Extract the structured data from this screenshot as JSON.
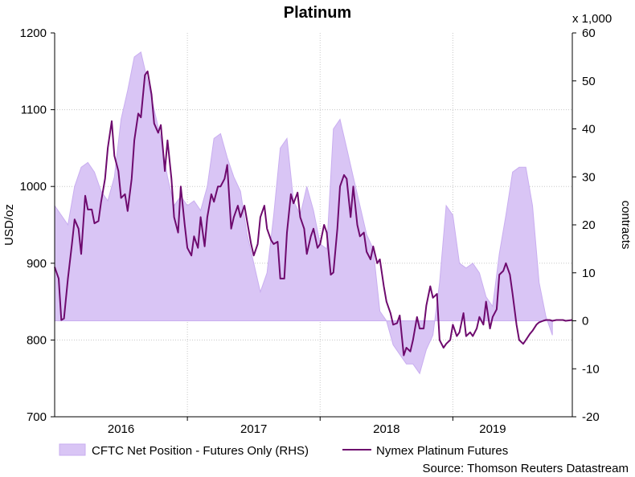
{
  "chart_data": {
    "type": "area",
    "title": "Platinum",
    "multiplier_label": "x 1,000",
    "source": "Source: Thomson Reuters Datastream",
    "left_axis": {
      "label": "USD/oz",
      "ylim": [
        700,
        1200
      ],
      "ticks": [
        700,
        800,
        900,
        1000,
        1100,
        1200
      ]
    },
    "right_axis": {
      "label": "contracts",
      "ylim": [
        -20,
        60
      ],
      "ticks": [
        -20,
        -10,
        0,
        10,
        20,
        30,
        40,
        50,
        60
      ]
    },
    "x_axis": {
      "xlim": [
        2015.45,
        2019.35
      ],
      "year_labels": [
        {
          "label": "2016",
          "x": 2015.95
        },
        {
          "label": "2017",
          "x": 2016.95
        },
        {
          "label": "2018",
          "x": 2017.95
        },
        {
          "label": "2019",
          "x": 2018.75
        }
      ],
      "year_boundaries": [
        2016.45,
        2017.45,
        2018.45
      ]
    },
    "grid": true,
    "legend_position": "bottom",
    "series": [
      {
        "name": "CFTC Net Position - Futures Only (RHS)",
        "type": "area",
        "axis": "right",
        "color": "#d9c5f5",
        "edge_color": "#c9aef0",
        "points": [
          [
            2015.45,
            24
          ],
          [
            2015.5,
            22
          ],
          [
            2015.55,
            20
          ],
          [
            2015.6,
            28
          ],
          [
            2015.65,
            32
          ],
          [
            2015.7,
            33
          ],
          [
            2015.75,
            31
          ],
          [
            2015.8,
            27
          ],
          [
            2015.85,
            25
          ],
          [
            2015.9,
            30
          ],
          [
            2015.95,
            42
          ],
          [
            2016.0,
            48
          ],
          [
            2016.05,
            55
          ],
          [
            2016.1,
            56
          ],
          [
            2016.15,
            50
          ],
          [
            2016.2,
            44
          ],
          [
            2016.25,
            38
          ],
          [
            2016.3,
            30
          ],
          [
            2016.35,
            24
          ],
          [
            2016.4,
            26
          ],
          [
            2016.45,
            24
          ],
          [
            2016.5,
            25
          ],
          [
            2016.55,
            23
          ],
          [
            2016.6,
            28
          ],
          [
            2016.65,
            38
          ],
          [
            2016.7,
            39
          ],
          [
            2016.75,
            34
          ],
          [
            2016.8,
            30
          ],
          [
            2016.85,
            27
          ],
          [
            2016.9,
            18
          ],
          [
            2016.95,
            12
          ],
          [
            2017.0,
            6
          ],
          [
            2017.05,
            10
          ],
          [
            2017.1,
            22
          ],
          [
            2017.15,
            36
          ],
          [
            2017.2,
            38
          ],
          [
            2017.25,
            25
          ],
          [
            2017.3,
            22
          ],
          [
            2017.35,
            28
          ],
          [
            2017.4,
            23
          ],
          [
            2017.45,
            16
          ],
          [
            2017.5,
            15
          ],
          [
            2017.55,
            40
          ],
          [
            2017.6,
            42
          ],
          [
            2017.65,
            36
          ],
          [
            2017.7,
            30
          ],
          [
            2017.75,
            24
          ],
          [
            2017.8,
            18
          ],
          [
            2017.85,
            15
          ],
          [
            2017.9,
            2
          ],
          [
            2017.95,
            0
          ],
          [
            2018.0,
            -5
          ],
          [
            2018.05,
            -7
          ],
          [
            2018.1,
            -9
          ],
          [
            2018.15,
            -9
          ],
          [
            2018.2,
            -11
          ],
          [
            2018.25,
            -6
          ],
          [
            2018.3,
            -3
          ],
          [
            2018.35,
            8
          ],
          [
            2018.4,
            24
          ],
          [
            2018.45,
            22
          ],
          [
            2018.5,
            12
          ],
          [
            2018.55,
            11
          ],
          [
            2018.6,
            12
          ],
          [
            2018.65,
            10
          ],
          [
            2018.7,
            5
          ],
          [
            2018.75,
            3
          ],
          [
            2018.8,
            14
          ],
          [
            2018.85,
            22
          ],
          [
            2018.9,
            31
          ],
          [
            2018.95,
            32
          ],
          [
            2019.0,
            32
          ],
          [
            2019.05,
            24
          ],
          [
            2019.1,
            8
          ],
          [
            2019.15,
            1
          ],
          [
            2019.2,
            -3
          ]
        ]
      },
      {
        "name": "Nymex Platinum Futures",
        "type": "line",
        "axis": "left",
        "color": "#6e0a6e",
        "points": [
          [
            2015.45,
            895
          ],
          [
            2015.48,
            880
          ],
          [
            2015.5,
            826
          ],
          [
            2015.52,
            828
          ],
          [
            2015.55,
            880
          ],
          [
            2015.58,
            925
          ],
          [
            2015.6,
            957
          ],
          [
            2015.63,
            945
          ],
          [
            2015.65,
            912
          ],
          [
            2015.68,
            988
          ],
          [
            2015.7,
            970
          ],
          [
            2015.73,
            970
          ],
          [
            2015.75,
            952
          ],
          [
            2015.78,
            955
          ],
          [
            2015.8,
            980
          ],
          [
            2015.83,
            1010
          ],
          [
            2015.85,
            1050
          ],
          [
            2015.88,
            1085
          ],
          [
            2015.9,
            1040
          ],
          [
            2015.93,
            1020
          ],
          [
            2015.95,
            985
          ],
          [
            2015.98,
            990
          ],
          [
            2016.0,
            968
          ],
          [
            2016.03,
            1010
          ],
          [
            2016.05,
            1060
          ],
          [
            2016.08,
            1095
          ],
          [
            2016.1,
            1090
          ],
          [
            2016.13,
            1145
          ],
          [
            2016.15,
            1150
          ],
          [
            2016.18,
            1120
          ],
          [
            2016.2,
            1082
          ],
          [
            2016.23,
            1070
          ],
          [
            2016.25,
            1080
          ],
          [
            2016.28,
            1020
          ],
          [
            2016.3,
            1060
          ],
          [
            2016.33,
            1010
          ],
          [
            2016.35,
            960
          ],
          [
            2016.38,
            940
          ],
          [
            2016.4,
            1000
          ],
          [
            2016.43,
            950
          ],
          [
            2016.45,
            920
          ],
          [
            2016.48,
            910
          ],
          [
            2016.5,
            935
          ],
          [
            2016.53,
            920
          ],
          [
            2016.55,
            960
          ],
          [
            2016.58,
            922
          ],
          [
            2016.6,
            960
          ],
          [
            2016.63,
            990
          ],
          [
            2016.65,
            980
          ],
          [
            2016.68,
            1000
          ],
          [
            2016.7,
            1000
          ],
          [
            2016.73,
            1010
          ],
          [
            2016.75,
            1028
          ],
          [
            2016.78,
            945
          ],
          [
            2016.8,
            960
          ],
          [
            2016.83,
            975
          ],
          [
            2016.85,
            960
          ],
          [
            2016.88,
            975
          ],
          [
            2016.9,
            955
          ],
          [
            2016.93,
            925
          ],
          [
            2016.95,
            910
          ],
          [
            2016.98,
            925
          ],
          [
            2017.0,
            960
          ],
          [
            2017.03,
            975
          ],
          [
            2017.05,
            945
          ],
          [
            2017.08,
            930
          ],
          [
            2017.1,
            925
          ],
          [
            2017.13,
            928
          ],
          [
            2017.15,
            880
          ],
          [
            2017.18,
            880
          ],
          [
            2017.2,
            940
          ],
          [
            2017.23,
            990
          ],
          [
            2017.25,
            978
          ],
          [
            2017.28,
            992
          ],
          [
            2017.3,
            960
          ],
          [
            2017.33,
            945
          ],
          [
            2017.35,
            912
          ],
          [
            2017.38,
            935
          ],
          [
            2017.4,
            945
          ],
          [
            2017.43,
            920
          ],
          [
            2017.45,
            925
          ],
          [
            2017.48,
            950
          ],
          [
            2017.5,
            940
          ],
          [
            2017.53,
            885
          ],
          [
            2017.55,
            888
          ],
          [
            2017.58,
            945
          ],
          [
            2017.6,
            1000
          ],
          [
            2017.63,
            1015
          ],
          [
            2017.65,
            1010
          ],
          [
            2017.68,
            960
          ],
          [
            2017.7,
            1000
          ],
          [
            2017.73,
            950
          ],
          [
            2017.75,
            935
          ],
          [
            2017.78,
            940
          ],
          [
            2017.8,
            915
          ],
          [
            2017.83,
            905
          ],
          [
            2017.85,
            922
          ],
          [
            2017.88,
            900
          ],
          [
            2017.9,
            905
          ],
          [
            2017.93,
            870
          ],
          [
            2017.95,
            850
          ],
          [
            2017.98,
            835
          ],
          [
            2018.0,
            820
          ],
          [
            2018.03,
            822
          ],
          [
            2018.05,
            832
          ],
          [
            2018.08,
            780
          ],
          [
            2018.1,
            790
          ],
          [
            2018.13,
            785
          ],
          [
            2018.15,
            800
          ],
          [
            2018.18,
            830
          ],
          [
            2018.2,
            815
          ],
          [
            2018.23,
            815
          ],
          [
            2018.25,
            845
          ],
          [
            2018.28,
            870
          ],
          [
            2018.3,
            855
          ],
          [
            2018.33,
            860
          ],
          [
            2018.35,
            800
          ],
          [
            2018.38,
            790
          ],
          [
            2018.4,
            795
          ],
          [
            2018.43,
            800
          ],
          [
            2018.45,
            820
          ],
          [
            2018.48,
            805
          ],
          [
            2018.5,
            810
          ],
          [
            2018.53,
            835
          ],
          [
            2018.55,
            805
          ],
          [
            2018.58,
            810
          ],
          [
            2018.6,
            805
          ],
          [
            2018.63,
            815
          ],
          [
            2018.65,
            830
          ],
          [
            2018.68,
            820
          ],
          [
            2018.7,
            850
          ],
          [
            2018.73,
            815
          ],
          [
            2018.75,
            830
          ],
          [
            2018.78,
            840
          ],
          [
            2018.8,
            885
          ],
          [
            2018.83,
            890
          ],
          [
            2018.85,
            900
          ],
          [
            2018.88,
            885
          ],
          [
            2018.9,
            860
          ],
          [
            2018.93,
            820
          ],
          [
            2018.95,
            800
          ],
          [
            2018.98,
            795
          ],
          [
            2019.0,
            800
          ],
          [
            2019.03,
            808
          ],
          [
            2019.05,
            812
          ],
          [
            2019.08,
            820
          ],
          [
            2019.1,
            823
          ],
          [
            2019.13,
            825
          ],
          [
            2019.15,
            826
          ],
          [
            2019.18,
            826
          ],
          [
            2019.2,
            825
          ],
          [
            2019.23,
            826
          ],
          [
            2019.25,
            826
          ],
          [
            2019.28,
            826
          ],
          [
            2019.3,
            825
          ],
          [
            2019.35,
            826
          ]
        ]
      }
    ]
  }
}
